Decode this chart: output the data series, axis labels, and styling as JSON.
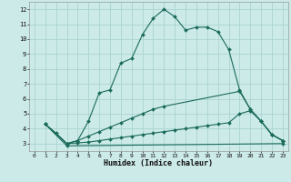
{
  "xlabel": "Humidex (Indice chaleur)",
  "bg_color": "#cceae8",
  "grid_color": "#aad4d2",
  "line_color": "#1a6b5a",
  "xlim": [
    -0.5,
    23.5
  ],
  "ylim": [
    2.5,
    12.5
  ],
  "xticks": [
    0,
    1,
    2,
    3,
    4,
    5,
    6,
    7,
    8,
    9,
    10,
    11,
    12,
    13,
    14,
    15,
    16,
    17,
    18,
    19,
    20,
    21,
    22,
    23
  ],
  "yticks": [
    3,
    4,
    5,
    6,
    7,
    8,
    9,
    10,
    11,
    12
  ],
  "lines": [
    {
      "x": [
        1,
        2,
        3,
        4,
        5,
        6,
        7,
        8,
        9,
        10,
        11,
        12,
        13,
        14,
        15,
        16,
        17,
        18,
        19,
        20,
        21,
        22,
        23
      ],
      "y": [
        4.3,
        3.7,
        3.0,
        3.2,
        4.5,
        6.4,
        6.6,
        8.4,
        8.7,
        10.3,
        11.4,
        12.0,
        11.5,
        10.6,
        10.8,
        10.8,
        10.5,
        9.3,
        6.6,
        5.3,
        4.5,
        3.6,
        3.2
      ]
    },
    {
      "x": [
        1,
        3,
        4,
        5,
        6,
        7,
        8,
        9,
        10,
        11,
        12,
        19,
        20,
        21,
        22,
        23
      ],
      "y": [
        4.3,
        3.0,
        3.2,
        3.5,
        3.8,
        4.1,
        4.4,
        4.7,
        5.0,
        5.3,
        5.5,
        6.5,
        5.3,
        4.5,
        3.6,
        3.2
      ]
    },
    {
      "x": [
        1,
        3,
        4,
        5,
        6,
        7,
        8,
        9,
        10,
        11,
        12,
        13,
        14,
        15,
        16,
        17,
        18,
        19,
        20,
        21,
        22,
        23
      ],
      "y": [
        4.3,
        3.0,
        3.05,
        3.1,
        3.2,
        3.3,
        3.4,
        3.5,
        3.6,
        3.7,
        3.8,
        3.9,
        4.0,
        4.1,
        4.2,
        4.3,
        4.4,
        5.0,
        5.2,
        4.5,
        3.6,
        3.2
      ]
    },
    {
      "x": [
        1,
        3,
        23
      ],
      "y": [
        4.3,
        2.85,
        3.0
      ]
    }
  ]
}
